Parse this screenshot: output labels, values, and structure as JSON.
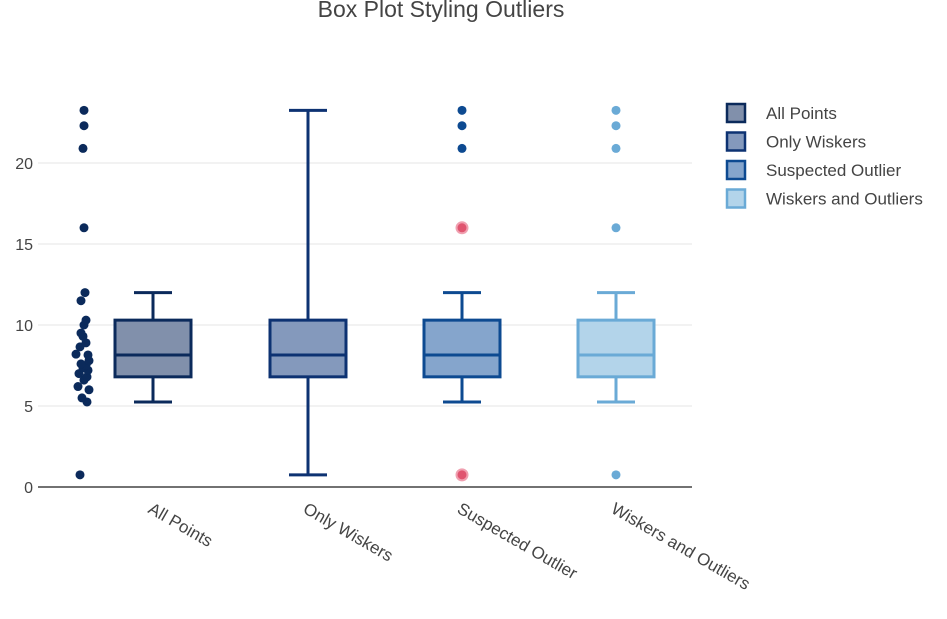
{
  "chart_data": {
    "type": "box",
    "title": "Box Plot Styling Outliers",
    "xlabel": "",
    "ylabel": "",
    "ylim": [
      0,
      25
    ],
    "yticks": [
      0,
      5,
      10,
      15,
      20
    ],
    "grid": true,
    "legend_position": "top-right",
    "categories": [
      "All Points",
      "Only Wiskers",
      "Suspected Outlier",
      "Wiskers and Outliers"
    ],
    "series": [
      {
        "name": "All Points",
        "boxpoints": "all",
        "q1": 6.8,
        "median": 8.15,
        "q3": 10.3,
        "lowerfence": 5.25,
        "upperfence": 12.0,
        "points": [
          0.75,
          5.25,
          5.5,
          6.0,
          6.2,
          6.6,
          6.8,
          7.0,
          7.2,
          7.35,
          7.5,
          7.6,
          7.8,
          8.2,
          8.15,
          8.65,
          8.9,
          9.3,
          9.5,
          10.0,
          10.3,
          11.5,
          12.0,
          16.0,
          20.9,
          22.3,
          23.25
        ],
        "color": "#0b2a5b",
        "fill": "#8190ab"
      },
      {
        "name": "Only Wiskers",
        "boxpoints": "false",
        "q1": 6.8,
        "median": 8.15,
        "q3": 10.3,
        "lowerfence": 0.75,
        "upperfence": 23.25,
        "points": [],
        "color": "#0d3272",
        "fill": "#8499bc"
      },
      {
        "name": "Suspected Outlier",
        "boxpoints": "suspectedoutliers",
        "q1": 6.8,
        "median": 8.15,
        "q3": 10.3,
        "lowerfence": 5.25,
        "upperfence": 12.0,
        "points": [
          20.9,
          22.3,
          23.25
        ],
        "suspected": [
          0.75,
          16.0
        ],
        "color": "#0d4a91",
        "fill": "#85a5cc",
        "suspected_color": "#e05570"
      },
      {
        "name": "Wiskers and Outliers",
        "boxpoints": "outliers",
        "q1": 6.8,
        "median": 8.15,
        "q3": 10.3,
        "lowerfence": 5.25,
        "upperfence": 12.0,
        "points": [
          0.75,
          16.0,
          20.9,
          22.3,
          23.25
        ],
        "color": "#6aaad6",
        "fill": "#b3d4ea"
      }
    ]
  }
}
